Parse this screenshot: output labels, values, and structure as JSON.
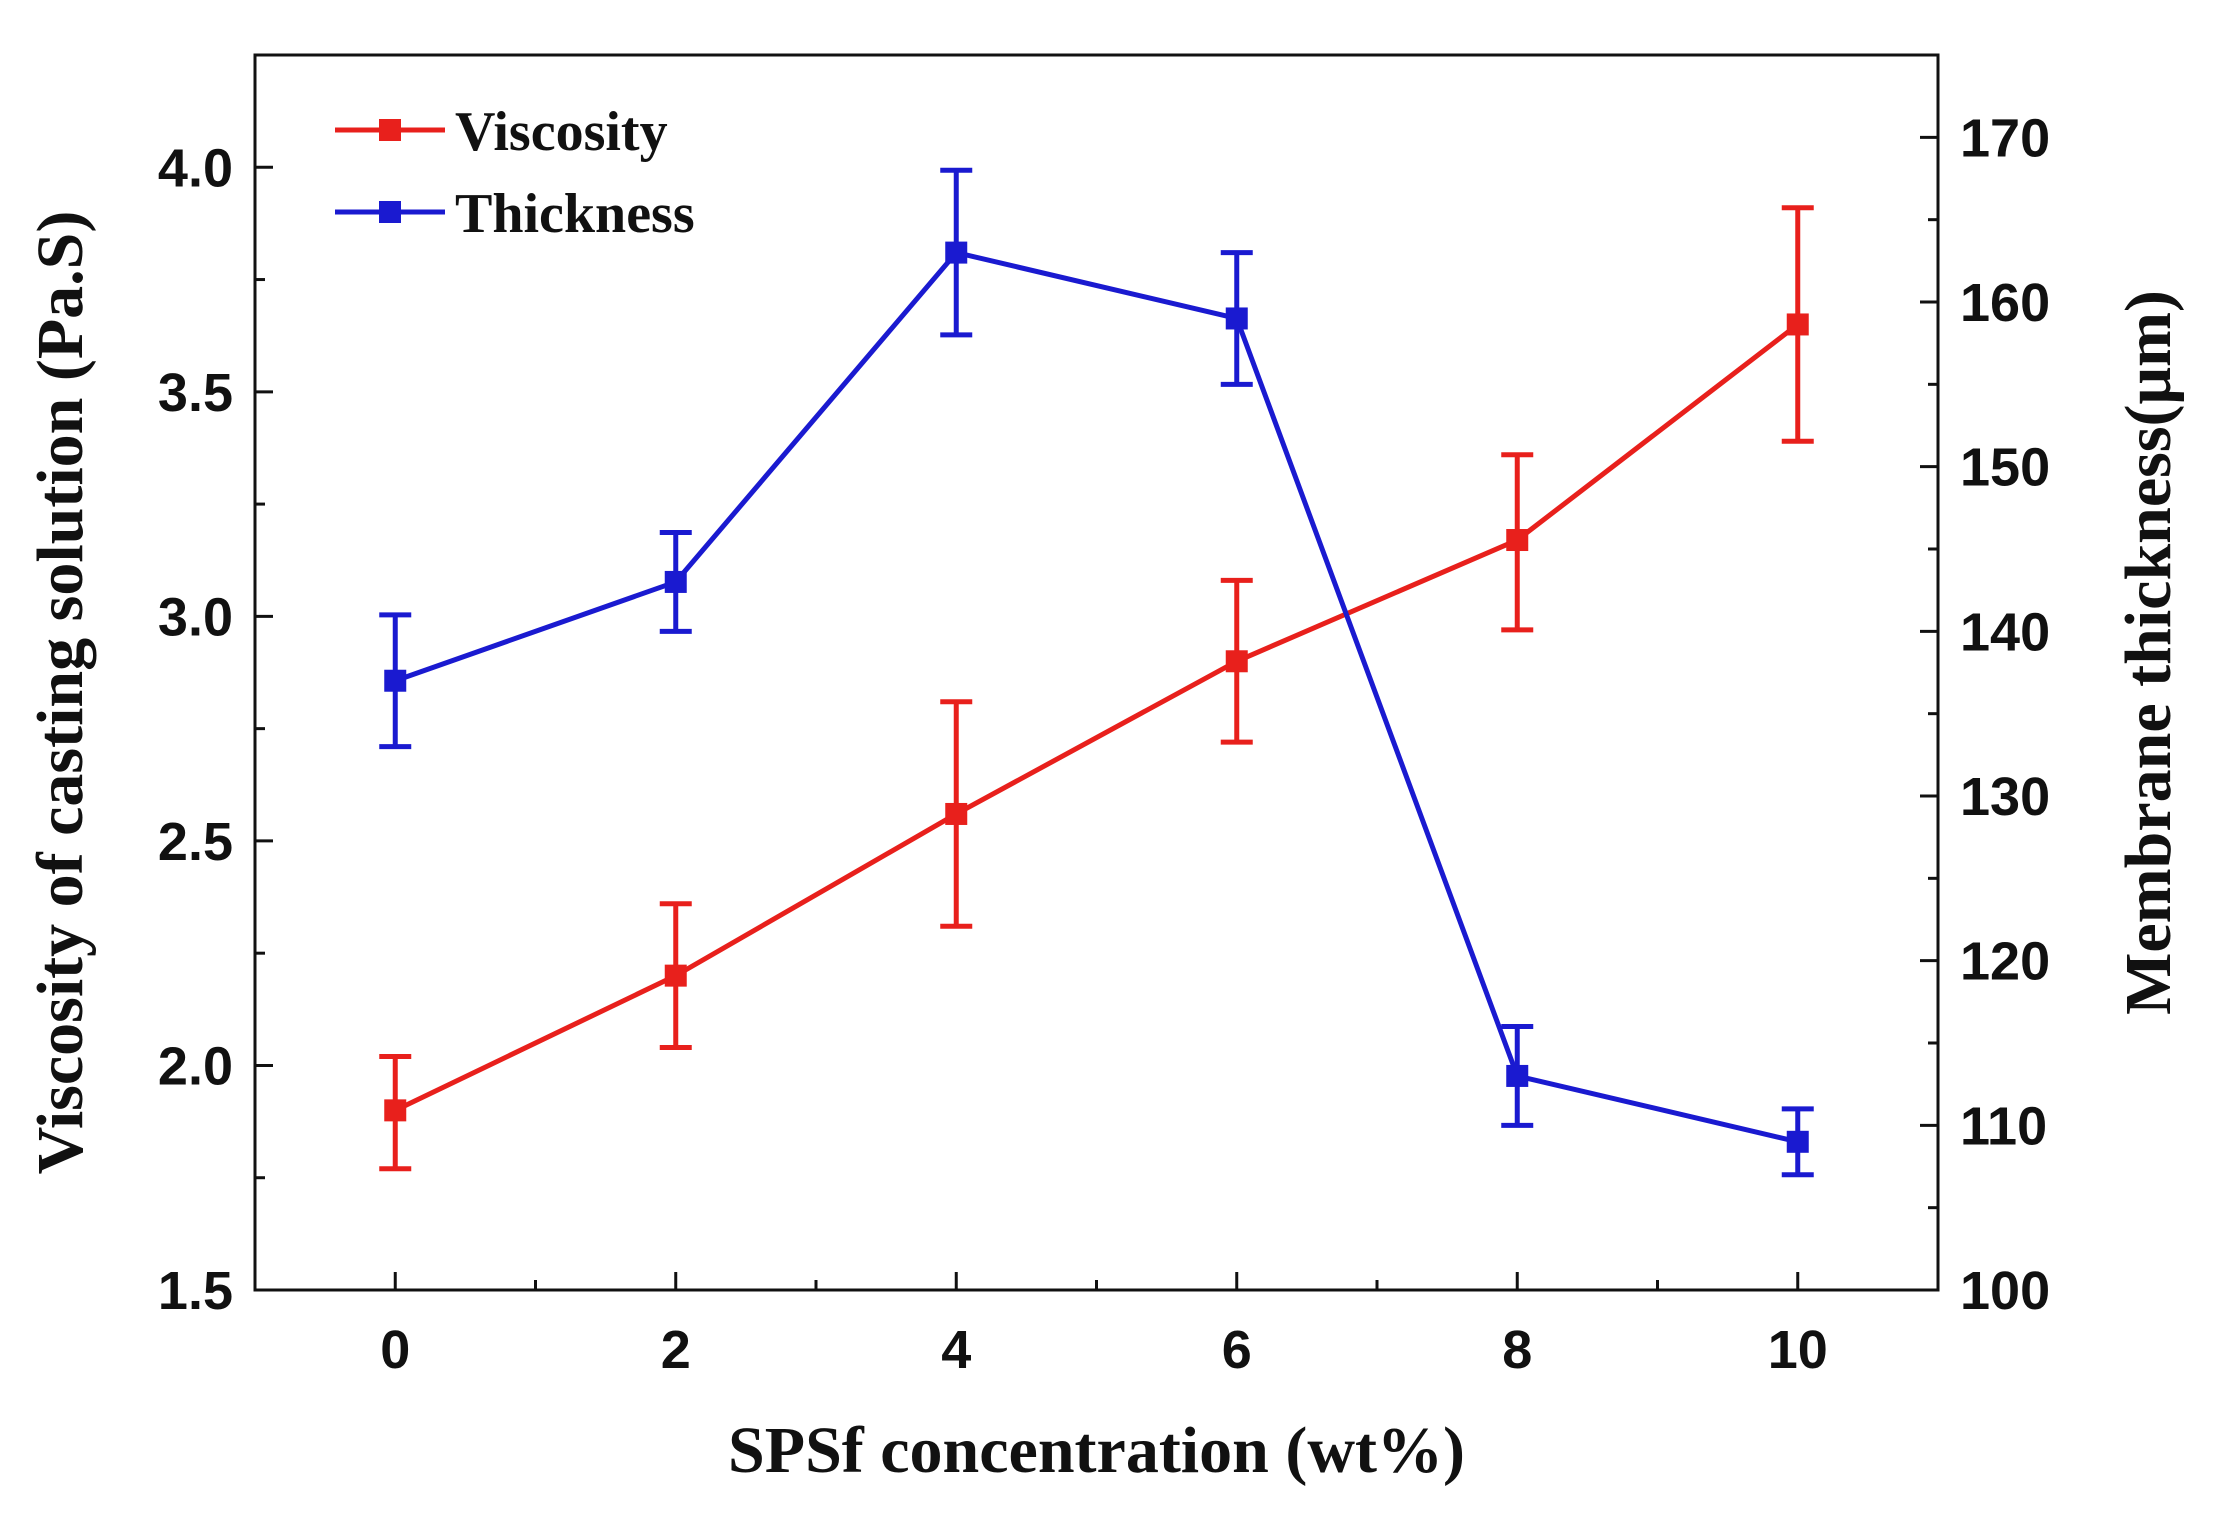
{
  "chart_data": {
    "type": "line",
    "xlabel": "SPSf concentration (wt%)",
    "ylabel_left": "Viscosity of casting solution  (Pa.S)",
    "ylabel_right": "Membrane thickness(μm)",
    "x": [
      0,
      2,
      4,
      6,
      8,
      10
    ],
    "xlim": [
      -1,
      11
    ],
    "ylim_left": [
      1.5,
      4.25
    ],
    "ylim_right": [
      100,
      175
    ],
    "xticks": [
      0,
      2,
      4,
      6,
      8,
      10
    ],
    "xtick_labels": [
      "0",
      "2",
      "4",
      "6",
      "8",
      "10"
    ],
    "yticks_left": [
      1.5,
      2.0,
      2.5,
      3.0,
      3.5,
      4.0
    ],
    "ytick_labels_left": [
      "1.5",
      "2.0",
      "2.5",
      "3.0",
      "3.5",
      "4.0"
    ],
    "yticks_right": [
      100,
      110,
      120,
      130,
      140,
      150,
      160,
      170
    ],
    "ytick_labels_right": [
      "100",
      "110",
      "120",
      "130",
      "140",
      "150",
      "160",
      "170"
    ],
    "legend_position": "top-left",
    "grid": false,
    "series": [
      {
        "name": "Viscosity",
        "axis": "left",
        "color": "#e8201c",
        "values": [
          1.9,
          2.2,
          2.56,
          2.9,
          3.17,
          3.65
        ],
        "err_low": [
          1.77,
          2.04,
          2.31,
          2.72,
          2.97,
          3.39
        ],
        "err_high": [
          2.02,
          2.36,
          2.81,
          3.08,
          3.36,
          3.91
        ]
      },
      {
        "name": "Thickness",
        "axis": "right",
        "color": "#1a1ad0",
        "values": [
          137,
          143,
          163,
          159,
          113,
          109
        ],
        "err_low": [
          133,
          140,
          158,
          155,
          110,
          107
        ],
        "err_high": [
          141,
          146,
          168,
          163,
          116,
          111
        ]
      }
    ]
  }
}
